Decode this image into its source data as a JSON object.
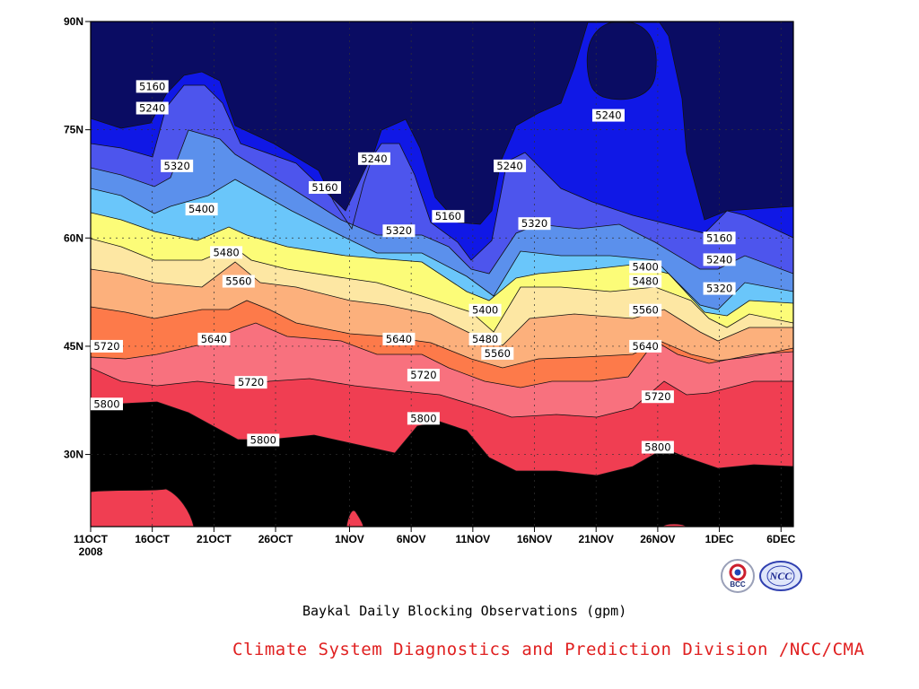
{
  "chart_data": {
    "type": "heatmap",
    "title": "Baykal Daily Blocking Observations (gpm)",
    "x_axis": {
      "start_date": "11OCT2008",
      "end_date": "7DEC2008",
      "tick_labels": [
        "11OCT",
        "16OCT",
        "21OCT",
        "26OCT",
        "1NOV",
        "6NOV",
        "11NOV",
        "16NOV",
        "21NOV",
        "26NOV",
        "1DEC",
        "6DEC"
      ],
      "year_label": "2008"
    },
    "y_axis": {
      "range": [
        "20N",
        "90N"
      ],
      "tick_labels": [
        "90N",
        "75N",
        "60N",
        "45N",
        "30N"
      ]
    },
    "grid": true,
    "contour_levels": [
      5160,
      5240,
      5320,
      5400,
      5480,
      5560,
      5640,
      5720,
      5800,
      5880
    ],
    "fill_colors": [
      "#0a0c63",
      "#1018e6",
      "#4d55ed",
      "#5b90ec",
      "#6ac6fa",
      "#fcfc78",
      "#fde7a3",
      "#fcb07c",
      "#fd7a4a",
      "#f8717e",
      "#f03e52"
    ],
    "contour_labels": [
      {
        "value": "5160",
        "date": "16OCT",
        "lat": "81N"
      },
      {
        "value": "5240",
        "date": "16OCT",
        "lat": "78N"
      },
      {
        "value": "5320",
        "date": "18OCT",
        "lat": "70N"
      },
      {
        "value": "5400",
        "date": "20OCT",
        "lat": "64N"
      },
      {
        "value": "5480",
        "date": "22OCT",
        "lat": "58N"
      },
      {
        "value": "5560",
        "date": "23OCT",
        "lat": "54N"
      },
      {
        "value": "5640",
        "date": "21OCT",
        "lat": "46N"
      },
      {
        "value": "5720",
        "date": "11OCT",
        "lat": "45N"
      },
      {
        "value": "5800",
        "date": "12OCT",
        "lat": "37N"
      },
      {
        "value": "5720",
        "date": "24OCT",
        "lat": "40N"
      },
      {
        "value": "5800",
        "date": "25OCT",
        "lat": "32N"
      },
      {
        "value": "5160",
        "date": "30OCT",
        "lat": "67N"
      },
      {
        "value": "5240",
        "date": "3NOV",
        "lat": "71N"
      },
      {
        "value": "5320",
        "date": "5NOV",
        "lat": "61N"
      },
      {
        "value": "5640",
        "date": "5NOV",
        "lat": "46N"
      },
      {
        "value": "5720",
        "date": "7NOV",
        "lat": "41N"
      },
      {
        "value": "5800",
        "date": "7NOV",
        "lat": "35N"
      },
      {
        "value": "5160",
        "date": "9NOV",
        "lat": "63N"
      },
      {
        "value": "5400",
        "date": "12NOV",
        "lat": "50N"
      },
      {
        "value": "5480",
        "date": "12NOV",
        "lat": "46N"
      },
      {
        "value": "5560",
        "date": "13NOV",
        "lat": "44N"
      },
      {
        "value": "5240",
        "date": "14NOV",
        "lat": "70N"
      },
      {
        "value": "5320",
        "date": "16NOV",
        "lat": "62N"
      },
      {
        "value": "5240",
        "date": "22NOV",
        "lat": "77N"
      },
      {
        "value": "5400",
        "date": "25NOV",
        "lat": "56N"
      },
      {
        "value": "5480",
        "date": "25NOV",
        "lat": "54N"
      },
      {
        "value": "5560",
        "date": "25NOV",
        "lat": "50N"
      },
      {
        "value": "5640",
        "date": "25NOV",
        "lat": "45N"
      },
      {
        "value": "5720",
        "date": "26NOV",
        "lat": "38N"
      },
      {
        "value": "5800",
        "date": "26NOV",
        "lat": "31N"
      },
      {
        "value": "5160",
        "date": "1DEC",
        "lat": "60N"
      },
      {
        "value": "5240",
        "date": "1DEC",
        "lat": "57N"
      },
      {
        "value": "5320",
        "date": "1DEC",
        "lat": "53N"
      }
    ]
  },
  "caption": {
    "title": "Baykal Daily Blocking Observations (gpm)",
    "credit": "Climate System Diagnostics and Prediction Division /NCC/CMA",
    "credit_color": "#e02020"
  },
  "logos": {
    "bcc_text": "BCC",
    "ncc_text": "NCC"
  }
}
